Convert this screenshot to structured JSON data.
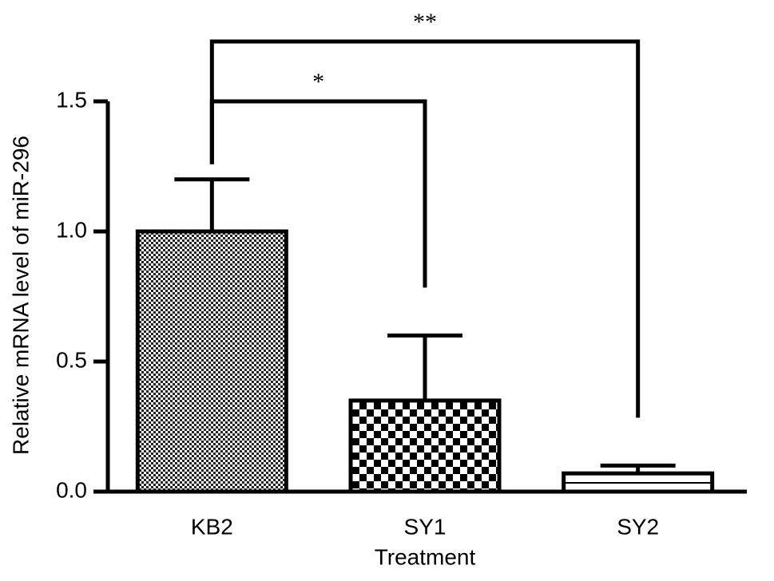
{
  "chart_data": {
    "type": "bar",
    "y_label": "Relative mRNA level of miR-296",
    "x_label": "Treatment",
    "categories": [
      "KB2",
      "SY1",
      "SY2"
    ],
    "values": [
      1.0,
      0.35,
      0.07
    ],
    "errors": [
      0.2,
      0.25,
      0.03
    ],
    "patterns": [
      "fine-check",
      "coarse-check",
      "stripes"
    ],
    "color": "#000000",
    "ylim": [
      0,
      1.5
    ],
    "yticks": [
      {
        "value": 0,
        "label": "0.0"
      },
      0.5,
      {
        "value": 1,
        "label": "1.0"
      },
      1.5
    ],
    "comparisons": [
      {
        "from": "KB2",
        "to": "SY1",
        "label": "*"
      },
      {
        "from": "KB2",
        "to": "SY2",
        "label": "**"
      }
    ]
  }
}
